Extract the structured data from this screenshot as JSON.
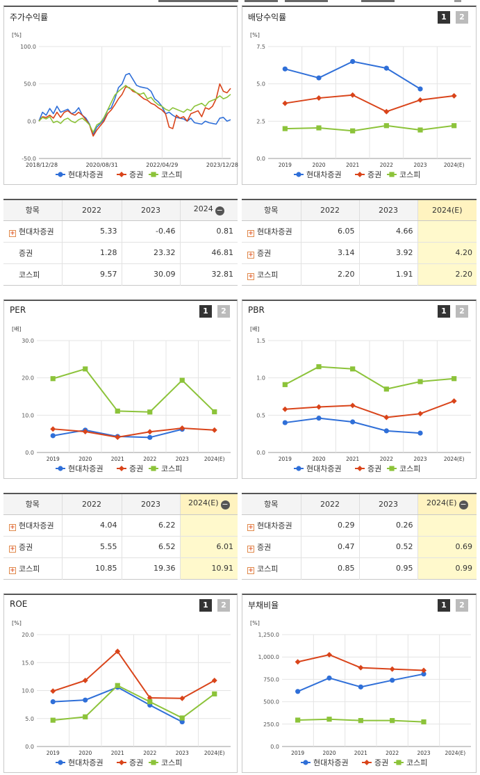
{
  "legend": {
    "a": "현대차증권",
    "b": "증권",
    "c": "코스피"
  },
  "colors": {
    "a": "#2f6fd8",
    "b": "#d9441a",
    "c": "#8cc33a"
  },
  "buttons": {
    "one": "1",
    "two": "2"
  },
  "table_header_label": "항목",
  "chart_data": [
    {
      "id": "price",
      "type": "line",
      "title": "주가수익률",
      "ylabel": "[%]",
      "ylim": [
        -50,
        100
      ],
      "yticks": [
        "100.0",
        "50.0",
        "0.0",
        "-50.0"
      ],
      "x_tick_labels": [
        "2018/12/28",
        "2020/08/31",
        "2022/04/29",
        "2023/12/28"
      ],
      "series": [
        {
          "name": "현대차증권",
          "values": [
            0,
            12,
            8,
            17,
            10,
            20,
            12,
            14,
            16,
            10,
            12,
            18,
            8,
            4,
            -4,
            -18,
            -8,
            -3,
            2,
            15,
            18,
            30,
            45,
            50,
            62,
            64,
            56,
            48,
            46,
            45,
            44,
            40,
            30,
            26,
            20,
            10,
            12,
            8,
            5,
            4,
            3,
            0,
            4,
            -2,
            -3,
            -4,
            0,
            -2,
            -3,
            -4,
            4,
            5,
            0,
            2
          ]
        },
        {
          "name": "증권",
          "values": [
            0,
            6,
            5,
            8,
            4,
            12,
            5,
            12,
            14,
            10,
            8,
            12,
            8,
            2,
            -5,
            -20,
            -12,
            -6,
            0,
            10,
            15,
            22,
            30,
            36,
            46,
            45,
            40,
            38,
            34,
            30,
            28,
            24,
            22,
            18,
            15,
            10,
            -8,
            -10,
            8,
            4,
            6,
            0,
            10,
            12,
            14,
            6,
            18,
            16,
            20,
            30,
            50,
            40,
            38,
            44
          ]
        },
        {
          "name": "코스피",
          "values": [
            0,
            5,
            3,
            6,
            -2,
            0,
            -3,
            2,
            4,
            0,
            -2,
            2,
            4,
            0,
            -5,
            -15,
            -5,
            -2,
            5,
            15,
            25,
            35,
            40,
            44,
            48,
            44,
            42,
            38,
            36,
            38,
            30,
            32,
            26,
            22,
            20,
            16,
            14,
            18,
            16,
            14,
            12,
            16,
            14,
            20,
            22,
            24,
            20,
            26,
            28,
            30,
            34,
            30,
            32,
            36
          ]
        }
      ]
    },
    {
      "id": "dividend",
      "type": "line",
      "title": "배당수익률",
      "ylabel": "[%]",
      "ylim": [
        0,
        7.5
      ],
      "yticks": [
        "7.5",
        "5.0",
        "2.5",
        "0.0"
      ],
      "categories": [
        "2019",
        "2020",
        "2021",
        "2022",
        "2023",
        "2024(E)"
      ],
      "series": [
        {
          "name": "현대차증권",
          "values": [
            6.0,
            5.4,
            6.5,
            6.05,
            4.66,
            null
          ]
        },
        {
          "name": "증권",
          "values": [
            3.7,
            4.05,
            4.25,
            3.14,
            3.92,
            4.2
          ]
        },
        {
          "name": "코스피",
          "values": [
            2.0,
            2.05,
            1.85,
            2.2,
            1.91,
            2.2
          ]
        }
      ]
    },
    {
      "id": "per",
      "type": "line",
      "title": "PER",
      "ylabel": "[배]",
      "ylim": [
        0,
        30
      ],
      "yticks": [
        "30.0",
        "20.0",
        "10.0",
        "0.0"
      ],
      "categories": [
        "2019",
        "2020",
        "2021",
        "2022",
        "2023",
        "2024(E)"
      ],
      "series": [
        {
          "name": "현대차증권",
          "values": [
            4.5,
            6.0,
            4.3,
            4.04,
            6.22,
            null
          ]
        },
        {
          "name": "증권",
          "values": [
            6.3,
            5.6,
            4.1,
            5.55,
            6.52,
            6.01
          ]
        },
        {
          "name": "코스피",
          "values": [
            19.8,
            22.4,
            11.1,
            10.85,
            19.36,
            10.91
          ]
        }
      ]
    },
    {
      "id": "pbr",
      "type": "line",
      "title": "PBR",
      "ylabel": "[배]",
      "ylim": [
        0,
        1.5
      ],
      "yticks": [
        "1.5",
        "1.0",
        "0.5",
        "0.0"
      ],
      "categories": [
        "2019",
        "2020",
        "2021",
        "2022",
        "2023",
        "2024(E)"
      ],
      "series": [
        {
          "name": "현대차증권",
          "values": [
            0.4,
            0.46,
            0.41,
            0.29,
            0.26,
            null
          ]
        },
        {
          "name": "증권",
          "values": [
            0.58,
            0.61,
            0.63,
            0.47,
            0.52,
            0.69
          ]
        },
        {
          "name": "코스피",
          "values": [
            0.91,
            1.15,
            1.12,
            0.85,
            0.95,
            0.99
          ]
        }
      ]
    },
    {
      "id": "roe",
      "type": "line",
      "title": "ROE",
      "ylabel": "[%]",
      "ylim": [
        0,
        20
      ],
      "yticks": [
        "20.0",
        "15.0",
        "10.0",
        "5.0",
        "0.0"
      ],
      "categories": [
        "2019",
        "2020",
        "2021",
        "2022",
        "2023",
        "2024(E)"
      ],
      "series": [
        {
          "name": "현대차증권",
          "values": [
            8.0,
            8.3,
            10.6,
            7.4,
            4.4,
            null
          ]
        },
        {
          "name": "증권",
          "values": [
            9.9,
            11.8,
            17.0,
            8.7,
            8.6,
            11.8
          ]
        },
        {
          "name": "코스피",
          "values": [
            4.7,
            5.3,
            10.9,
            8.0,
            5.1,
            9.4
          ]
        }
      ]
    },
    {
      "id": "debt",
      "type": "line",
      "title": "부채비율",
      "ylabel": "[%]",
      "ylim": [
        0,
        1250
      ],
      "yticks": [
        "1,250.0",
        "1,000.0",
        "750.0",
        "500.0",
        "250.0",
        "0.0"
      ],
      "categories": [
        "2019",
        "2020",
        "2021",
        "2022",
        "2023",
        "2024(E)"
      ],
      "series": [
        {
          "name": "현대차증권",
          "values": [
            615,
            765,
            665,
            740,
            810,
            null
          ]
        },
        {
          "name": "증권",
          "values": [
            945,
            1025,
            880,
            865,
            850,
            null
          ]
        },
        {
          "name": "코스피",
          "values": [
            295,
            305,
            290,
            290,
            275,
            null
          ]
        }
      ]
    }
  ],
  "tables": [
    {
      "id": "t-price",
      "cols": [
        "2022",
        "2023",
        "2024"
      ],
      "minus_on_last": true,
      "highlight_last": false,
      "rows": [
        {
          "label": "현대차증권",
          "plus": true,
          "values": [
            "5.33",
            "-0.46",
            "0.81"
          ]
        },
        {
          "label": "증권",
          "plus": false,
          "values": [
            "1.28",
            "23.32",
            "46.81"
          ]
        },
        {
          "label": "코스피",
          "plus": false,
          "values": [
            "9.57",
            "30.09",
            "32.81"
          ]
        }
      ]
    },
    {
      "id": "t-div",
      "cols": [
        "2022",
        "2023",
        "2024(E)"
      ],
      "minus_on_last": false,
      "highlight_last": true,
      "rows": [
        {
          "label": "현대차증권",
          "plus": true,
          "values": [
            "6.05",
            "4.66",
            ""
          ]
        },
        {
          "label": "증권",
          "plus": true,
          "values": [
            "3.14",
            "3.92",
            "4.20"
          ]
        },
        {
          "label": "코스피",
          "plus": true,
          "values": [
            "2.20",
            "1.91",
            "2.20"
          ]
        }
      ]
    },
    {
      "id": "t-per",
      "cols": [
        "2022",
        "2023",
        "2024(E)"
      ],
      "minus_on_last": true,
      "highlight_last": true,
      "rows": [
        {
          "label": "현대차증권",
          "plus": true,
          "values": [
            "4.04",
            "6.22",
            ""
          ]
        },
        {
          "label": "증권",
          "plus": true,
          "values": [
            "5.55",
            "6.52",
            "6.01"
          ]
        },
        {
          "label": "코스피",
          "plus": true,
          "values": [
            "10.85",
            "19.36",
            "10.91"
          ]
        }
      ]
    },
    {
      "id": "t-pbr",
      "cols": [
        "2022",
        "2023",
        "2024(E)"
      ],
      "minus_on_last": true,
      "highlight_last": true,
      "rows": [
        {
          "label": "현대차증권",
          "plus": true,
          "values": [
            "0.29",
            "0.26",
            ""
          ]
        },
        {
          "label": "증권",
          "plus": true,
          "values": [
            "0.47",
            "0.52",
            "0.69"
          ]
        },
        {
          "label": "코스피",
          "plus": true,
          "values": [
            "0.85",
            "0.95",
            "0.99"
          ]
        }
      ]
    }
  ]
}
